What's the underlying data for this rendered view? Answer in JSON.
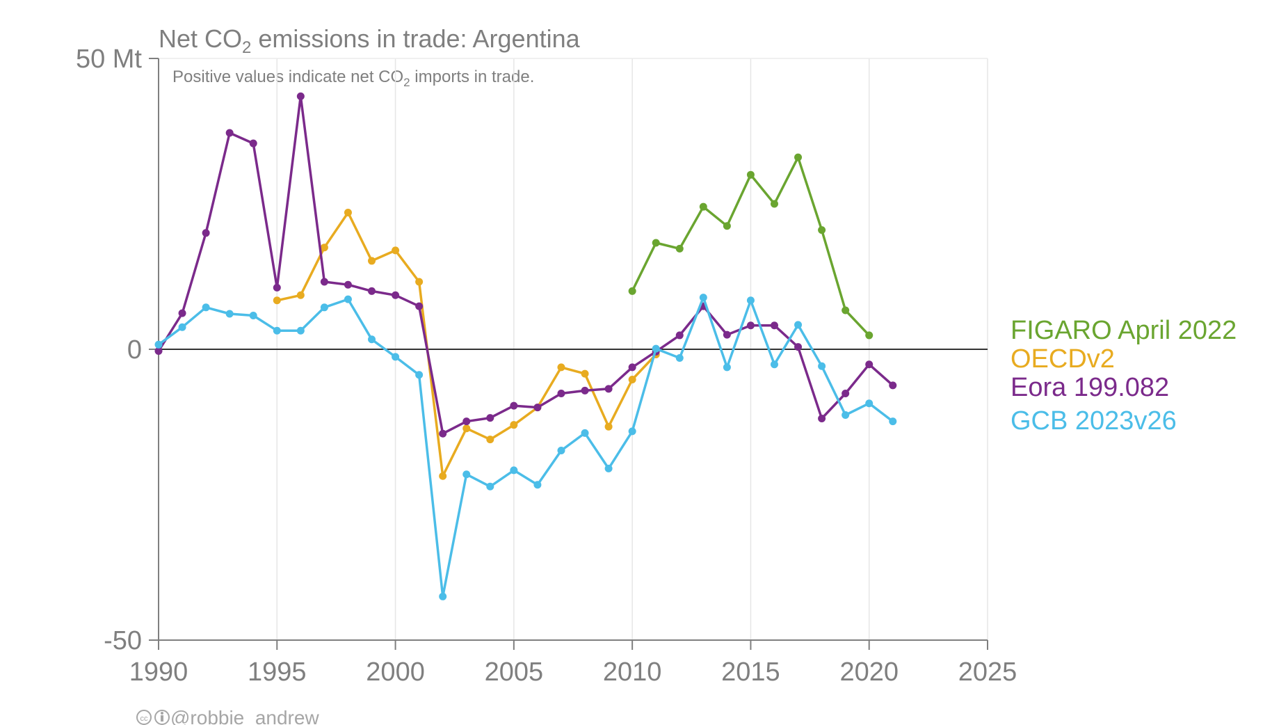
{
  "chart_data": {
    "type": "line",
    "title": "Net CO2 emissions in trade: Argentina",
    "title_parts": {
      "before": "Net CO",
      "sub": "2",
      "after": " emissions in trade: Argentina"
    },
    "subtitle": "Positive values indicate net CO2 imports in trade.",
    "subtitle_parts": {
      "before": "Positive values indicate net CO",
      "sub": "2",
      "after": " imports in trade."
    },
    "xlabel": "",
    "ylabel": "",
    "xlim": [
      1990,
      2025
    ],
    "ylim": [
      -50,
      50
    ],
    "x_ticks": [
      1990,
      1995,
      2000,
      2005,
      2010,
      2015,
      2020,
      2025
    ],
    "y_ticks": [
      {
        "value": 50,
        "label": "50 Mt"
      },
      {
        "value": 0,
        "label": "0"
      },
      {
        "value": -50,
        "label": "-50"
      }
    ],
    "grid": "vertical",
    "legend_position": "right",
    "series": [
      {
        "name": "FIGARO April 2022",
        "color": "#6aa530",
        "x": [
          2010,
          2011,
          2012,
          2013,
          2014,
          2015,
          2016,
          2017,
          2018,
          2019,
          2020
        ],
        "y": [
          10.0,
          18.3,
          17.3,
          24.5,
          21.2,
          30.0,
          25.0,
          33.0,
          20.5,
          6.7,
          2.4
        ]
      },
      {
        "name": "OECDv2",
        "color": "#e8ab20",
        "x": [
          1995,
          1996,
          1997,
          1998,
          1999,
          2000,
          2001,
          2002,
          2003,
          2004,
          2005,
          2006,
          2007,
          2008,
          2009,
          2010,
          2011
        ],
        "y": [
          8.4,
          9.3,
          17.5,
          23.5,
          15.2,
          17.0,
          11.6,
          -21.8,
          -13.6,
          -15.5,
          -13.0,
          -10.0,
          -3.1,
          -4.2,
          -13.3,
          -5.2,
          -0.9
        ]
      },
      {
        "name": "Eora 199.082",
        "color": "#7b2a8b",
        "x": [
          1990,
          1991,
          1992,
          1993,
          1994,
          1995,
          1996,
          1997,
          1998,
          1999,
          2000,
          2001,
          2002,
          2003,
          2004,
          2005,
          2006,
          2007,
          2008,
          2009,
          2010,
          2011,
          2012,
          2013,
          2014,
          2015,
          2016,
          2017,
          2018,
          2019,
          2020,
          2021
        ],
        "y": [
          -0.3,
          6.2,
          20.0,
          37.2,
          35.4,
          10.6,
          43.5,
          11.6,
          11.1,
          10.0,
          9.3,
          7.4,
          -14.5,
          -12.4,
          -11.8,
          -9.7,
          -10.0,
          -7.6,
          -7.1,
          -6.8,
          -3.1,
          -0.4,
          2.4,
          7.4,
          2.5,
          4.1,
          4.1,
          0.4,
          -11.9,
          -7.6,
          -2.6,
          -6.2
        ]
      },
      {
        "name": "GCB 2023v26",
        "color": "#4bbde8",
        "x": [
          1990,
          1991,
          1992,
          1993,
          1994,
          1995,
          1996,
          1997,
          1998,
          1999,
          2000,
          2001,
          2002,
          2003,
          2004,
          2005,
          2006,
          2007,
          2008,
          2009,
          2010,
          2011,
          2012,
          2013,
          2014,
          2015,
          2016,
          2017,
          2018,
          2019,
          2020,
          2021
        ],
        "y": [
          0.8,
          3.8,
          7.2,
          6.1,
          5.8,
          3.2,
          3.2,
          7.2,
          8.6,
          1.7,
          -1.3,
          -4.4,
          -42.5,
          -21.5,
          -23.6,
          -20.8,
          -23.3,
          -17.4,
          -14.4,
          -20.5,
          -14.1,
          0.1,
          -1.5,
          8.9,
          -3.1,
          8.4,
          -2.6,
          4.2,
          -2.9,
          -11.3,
          -9.3,
          -12.4
        ]
      }
    ],
    "legend_order": [
      0,
      1,
      2,
      3
    ]
  },
  "credit": {
    "icons": "creative-commons-by-icon",
    "text": "@robbie_andrew"
  }
}
